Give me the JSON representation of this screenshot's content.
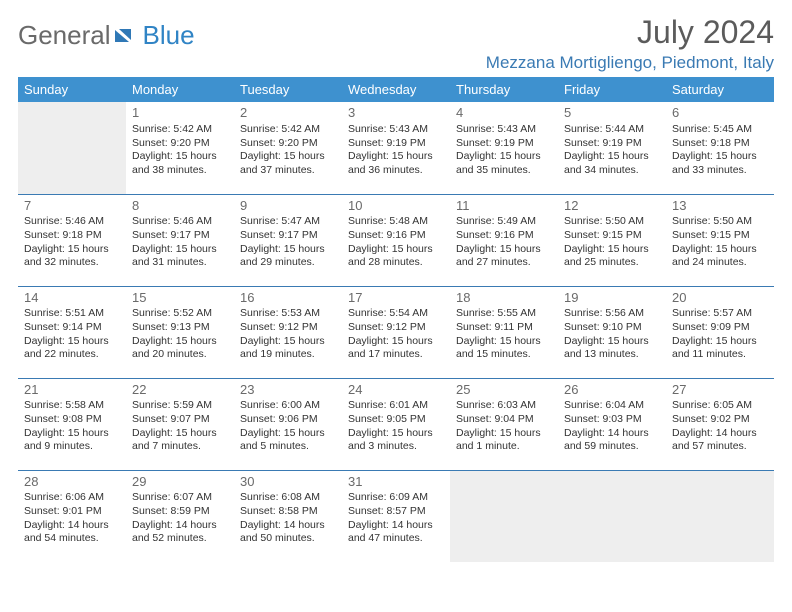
{
  "logo": {
    "text1": "General",
    "text2": "Blue"
  },
  "header": {
    "title": "July 2024",
    "location": "Mezzana Mortigliengo, Piedmont, Italy"
  },
  "colors": {
    "header_bg": "#3e91cf",
    "divider": "#3a7ab3",
    "blank_bg": "#eeeeee",
    "text_gray": "#6a6a6a",
    "location": "#3a7ab3"
  },
  "weekdays": [
    "Sunday",
    "Monday",
    "Tuesday",
    "Wednesday",
    "Thursday",
    "Friday",
    "Saturday"
  ],
  "weeks": [
    [
      null,
      {
        "n": "1",
        "sr": "Sunrise: 5:42 AM",
        "ss": "Sunset: 9:20 PM",
        "d1": "Daylight: 15 hours",
        "d2": "and 38 minutes."
      },
      {
        "n": "2",
        "sr": "Sunrise: 5:42 AM",
        "ss": "Sunset: 9:20 PM",
        "d1": "Daylight: 15 hours",
        "d2": "and 37 minutes."
      },
      {
        "n": "3",
        "sr": "Sunrise: 5:43 AM",
        "ss": "Sunset: 9:19 PM",
        "d1": "Daylight: 15 hours",
        "d2": "and 36 minutes."
      },
      {
        "n": "4",
        "sr": "Sunrise: 5:43 AM",
        "ss": "Sunset: 9:19 PM",
        "d1": "Daylight: 15 hours",
        "d2": "and 35 minutes."
      },
      {
        "n": "5",
        "sr": "Sunrise: 5:44 AM",
        "ss": "Sunset: 9:19 PM",
        "d1": "Daylight: 15 hours",
        "d2": "and 34 minutes."
      },
      {
        "n": "6",
        "sr": "Sunrise: 5:45 AM",
        "ss": "Sunset: 9:18 PM",
        "d1": "Daylight: 15 hours",
        "d2": "and 33 minutes."
      }
    ],
    [
      {
        "n": "7",
        "sr": "Sunrise: 5:46 AM",
        "ss": "Sunset: 9:18 PM",
        "d1": "Daylight: 15 hours",
        "d2": "and 32 minutes."
      },
      {
        "n": "8",
        "sr": "Sunrise: 5:46 AM",
        "ss": "Sunset: 9:17 PM",
        "d1": "Daylight: 15 hours",
        "d2": "and 31 minutes."
      },
      {
        "n": "9",
        "sr": "Sunrise: 5:47 AM",
        "ss": "Sunset: 9:17 PM",
        "d1": "Daylight: 15 hours",
        "d2": "and 29 minutes."
      },
      {
        "n": "10",
        "sr": "Sunrise: 5:48 AM",
        "ss": "Sunset: 9:16 PM",
        "d1": "Daylight: 15 hours",
        "d2": "and 28 minutes."
      },
      {
        "n": "11",
        "sr": "Sunrise: 5:49 AM",
        "ss": "Sunset: 9:16 PM",
        "d1": "Daylight: 15 hours",
        "d2": "and 27 minutes."
      },
      {
        "n": "12",
        "sr": "Sunrise: 5:50 AM",
        "ss": "Sunset: 9:15 PM",
        "d1": "Daylight: 15 hours",
        "d2": "and 25 minutes."
      },
      {
        "n": "13",
        "sr": "Sunrise: 5:50 AM",
        "ss": "Sunset: 9:15 PM",
        "d1": "Daylight: 15 hours",
        "d2": "and 24 minutes."
      }
    ],
    [
      {
        "n": "14",
        "sr": "Sunrise: 5:51 AM",
        "ss": "Sunset: 9:14 PM",
        "d1": "Daylight: 15 hours",
        "d2": "and 22 minutes."
      },
      {
        "n": "15",
        "sr": "Sunrise: 5:52 AM",
        "ss": "Sunset: 9:13 PM",
        "d1": "Daylight: 15 hours",
        "d2": "and 20 minutes."
      },
      {
        "n": "16",
        "sr": "Sunrise: 5:53 AM",
        "ss": "Sunset: 9:12 PM",
        "d1": "Daylight: 15 hours",
        "d2": "and 19 minutes."
      },
      {
        "n": "17",
        "sr": "Sunrise: 5:54 AM",
        "ss": "Sunset: 9:12 PM",
        "d1": "Daylight: 15 hours",
        "d2": "and 17 minutes."
      },
      {
        "n": "18",
        "sr": "Sunrise: 5:55 AM",
        "ss": "Sunset: 9:11 PM",
        "d1": "Daylight: 15 hours",
        "d2": "and 15 minutes."
      },
      {
        "n": "19",
        "sr": "Sunrise: 5:56 AM",
        "ss": "Sunset: 9:10 PM",
        "d1": "Daylight: 15 hours",
        "d2": "and 13 minutes."
      },
      {
        "n": "20",
        "sr": "Sunrise: 5:57 AM",
        "ss": "Sunset: 9:09 PM",
        "d1": "Daylight: 15 hours",
        "d2": "and 11 minutes."
      }
    ],
    [
      {
        "n": "21",
        "sr": "Sunrise: 5:58 AM",
        "ss": "Sunset: 9:08 PM",
        "d1": "Daylight: 15 hours",
        "d2": "and 9 minutes."
      },
      {
        "n": "22",
        "sr": "Sunrise: 5:59 AM",
        "ss": "Sunset: 9:07 PM",
        "d1": "Daylight: 15 hours",
        "d2": "and 7 minutes."
      },
      {
        "n": "23",
        "sr": "Sunrise: 6:00 AM",
        "ss": "Sunset: 9:06 PM",
        "d1": "Daylight: 15 hours",
        "d2": "and 5 minutes."
      },
      {
        "n": "24",
        "sr": "Sunrise: 6:01 AM",
        "ss": "Sunset: 9:05 PM",
        "d1": "Daylight: 15 hours",
        "d2": "and 3 minutes."
      },
      {
        "n": "25",
        "sr": "Sunrise: 6:03 AM",
        "ss": "Sunset: 9:04 PM",
        "d1": "Daylight: 15 hours",
        "d2": "and 1 minute."
      },
      {
        "n": "26",
        "sr": "Sunrise: 6:04 AM",
        "ss": "Sunset: 9:03 PM",
        "d1": "Daylight: 14 hours",
        "d2": "and 59 minutes."
      },
      {
        "n": "27",
        "sr": "Sunrise: 6:05 AM",
        "ss": "Sunset: 9:02 PM",
        "d1": "Daylight: 14 hours",
        "d2": "and 57 minutes."
      }
    ],
    [
      {
        "n": "28",
        "sr": "Sunrise: 6:06 AM",
        "ss": "Sunset: 9:01 PM",
        "d1": "Daylight: 14 hours",
        "d2": "and 54 minutes."
      },
      {
        "n": "29",
        "sr": "Sunrise: 6:07 AM",
        "ss": "Sunset: 8:59 PM",
        "d1": "Daylight: 14 hours",
        "d2": "and 52 minutes."
      },
      {
        "n": "30",
        "sr": "Sunrise: 6:08 AM",
        "ss": "Sunset: 8:58 PM",
        "d1": "Daylight: 14 hours",
        "d2": "and 50 minutes."
      },
      {
        "n": "31",
        "sr": "Sunrise: 6:09 AM",
        "ss": "Sunset: 8:57 PM",
        "d1": "Daylight: 14 hours",
        "d2": "and 47 minutes."
      },
      null,
      null,
      null
    ]
  ]
}
